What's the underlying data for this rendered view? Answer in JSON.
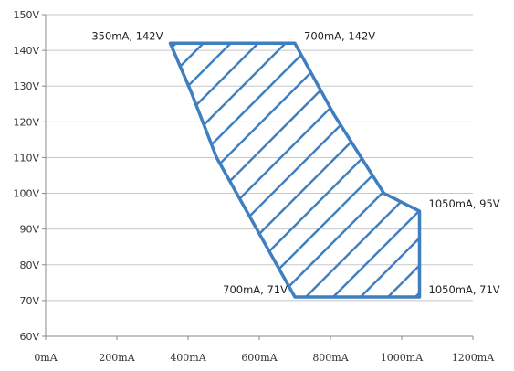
{
  "chart_data": {
    "type": "area",
    "title": "",
    "xlabel": "",
    "ylabel": "",
    "xlim": [
      0,
      1200
    ],
    "ylim": [
      60,
      150
    ],
    "x_ticks": [
      {
        "value": 0,
        "label": "0mA"
      },
      {
        "value": 200,
        "label": "200mA"
      },
      {
        "value": 400,
        "label": "400mA"
      },
      {
        "value": 600,
        "label": "600mA"
      },
      {
        "value": 800,
        "label": "800mA"
      },
      {
        "value": 1000,
        "label": "1000mA"
      },
      {
        "value": 1200,
        "label": "1200mA"
      }
    ],
    "y_ticks": [
      {
        "value": 60,
        "label": "60V"
      },
      {
        "value": 70,
        "label": "70V"
      },
      {
        "value": 80,
        "label": "80V"
      },
      {
        "value": 90,
        "label": "90V"
      },
      {
        "value": 100,
        "label": "100V"
      },
      {
        "value": 110,
        "label": "110V"
      },
      {
        "value": 120,
        "label": "120V"
      },
      {
        "value": 130,
        "label": "130V"
      },
      {
        "value": 140,
        "label": "140V"
      },
      {
        "value": 150,
        "label": "150V"
      }
    ],
    "grid": {
      "horizontal": true,
      "vertical": false
    },
    "region": {
      "fill": "diagonal-hatch",
      "color": "#3f7fbf",
      "points": [
        {
          "x": 350,
          "y": 142
        },
        {
          "x": 700,
          "y": 142
        },
        {
          "x": 810,
          "y": 122
        },
        {
          "x": 950,
          "y": 100
        },
        {
          "x": 1050,
          "y": 95
        },
        {
          "x": 1050,
          "y": 71
        },
        {
          "x": 700,
          "y": 71
        },
        {
          "x": 480,
          "y": 110
        },
        {
          "x": 410,
          "y": 128
        }
      ]
    },
    "annotations": [
      {
        "text": "350mA, 142V",
        "x": 350,
        "y": 142,
        "anchor": "left-of"
      },
      {
        "text": "700mA, 142V",
        "x": 700,
        "y": 142,
        "anchor": "right-of"
      },
      {
        "text": "1050mA, 95V",
        "x": 1050,
        "y": 95,
        "anchor": "right-of"
      },
      {
        "text": "700mA, 71V",
        "x": 700,
        "y": 71,
        "anchor": "left-of"
      },
      {
        "text": "1050mA, 71V",
        "x": 1050,
        "y": 71,
        "anchor": "right-of"
      }
    ]
  }
}
